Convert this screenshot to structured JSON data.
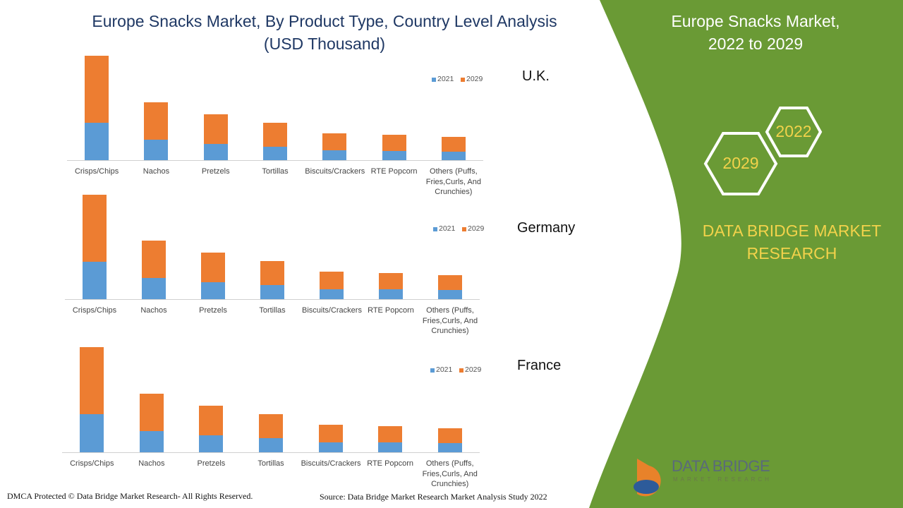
{
  "title": "Europe Snacks Market, By Product Type, Country Level Analysis (USD Thousand)",
  "panel": {
    "title": "Europe Snacks Market, 2022 to 2029",
    "hex_small": "2022",
    "hex_large": "2029",
    "brand": "DATA BRIDGE MARKET RESEARCH",
    "logo_name": "DATA BRIDGE",
    "logo_sub": "MARKET RESEARCH"
  },
  "footer": {
    "rights": "DMCA Protected © Data Bridge Market Research- All Rights Reserved.",
    "source": "Source: Data Bridge Market Research Market Analysis Study 2022"
  },
  "chart_data": [
    {
      "type": "bar",
      "stacked": true,
      "title": "U.K.",
      "ylim": [
        0,
        150
      ],
      "categories": [
        "Crisps/Chips",
        "Nachos",
        "Pretzels",
        "Tortillas",
        "Biscuits/Crackers",
        "RTE Popcorn",
        "Others (Puffs, Fries,Curls, And Crunchies)"
      ],
      "series": [
        {
          "name": "2021",
          "color": "#5b9bd5",
          "values": [
            53,
            29,
            23,
            19,
            14,
            13,
            12
          ]
        },
        {
          "name": "2029",
          "color": "#ed7d31",
          "values": [
            95,
            53,
            42,
            34,
            24,
            23,
            21
          ]
        }
      ]
    },
    {
      "type": "bar",
      "stacked": true,
      "title": "Germany",
      "ylim": [
        0,
        150
      ],
      "categories": [
        "Crisps/Chips",
        "Nachos",
        "Pretzels",
        "Tortillas",
        "Biscuits/Crackers",
        "RTE Popcorn",
        "Others (Puffs, Fries,Curls, And Crunchies)"
      ],
      "series": [
        {
          "name": "2021",
          "color": "#5b9bd5",
          "values": [
            53,
            30,
            24,
            20,
            14,
            14,
            13
          ]
        },
        {
          "name": "2029",
          "color": "#ed7d31",
          "values": [
            95,
            53,
            42,
            34,
            25,
            23,
            21
          ]
        }
      ]
    },
    {
      "type": "bar",
      "stacked": true,
      "title": "France",
      "ylim": [
        0,
        150
      ],
      "categories": [
        "Crisps/Chips",
        "Nachos",
        "Pretzels",
        "Tortillas",
        "Biscuits/Crackers",
        "RTE Popcorn",
        "Others (Puffs, Fries,Curls, And Crunchies)"
      ],
      "series": [
        {
          "name": "2021",
          "color": "#5b9bd5",
          "values": [
            54,
            30,
            24,
            20,
            14,
            14,
            13
          ]
        },
        {
          "name": "2029",
          "color": "#ed7d31",
          "values": [
            95,
            53,
            42,
            34,
            25,
            23,
            21
          ]
        }
      ]
    }
  ]
}
